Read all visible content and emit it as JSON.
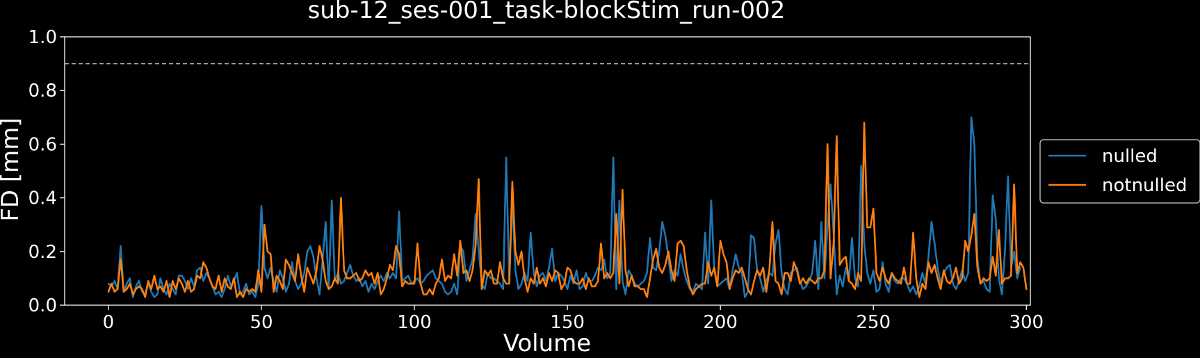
{
  "chart_data": {
    "type": "line",
    "title": "sub-12_ses-001_task-blockStim_run-002",
    "xlabel": "Volume",
    "ylabel": "FD [mm]",
    "xlim": [
      -14.3,
      301.3
    ],
    "ylim": [
      0.0,
      1.0
    ],
    "xticks": [
      0,
      50,
      100,
      150,
      200,
      250,
      300
    ],
    "yticks": [
      0.0,
      0.2,
      0.4,
      0.6,
      0.8,
      1.0
    ],
    "ytick_format": 1,
    "grid": false,
    "legend": "right-outside",
    "background": "#000000",
    "threshold": {
      "value": 0.9,
      "style": "dashed",
      "color": "#b0b0b0"
    },
    "series": [
      {
        "name": "nulled",
        "color": "#1f77b4",
        "values": [
          0.08,
          0.07,
          0.09,
          0.06,
          0.22,
          0.05,
          0.08,
          0.1,
          0.03,
          0.07,
          0.09,
          0.05,
          0.04,
          0.08,
          0.05,
          0.03,
          0.04,
          0.1,
          0.06,
          0.04,
          0.08,
          0.06,
          0.04,
          0.11,
          0.11,
          0.09,
          0.06,
          0.1,
          0.07,
          0.13,
          0.14,
          0.09,
          0.12,
          0.1,
          0.07,
          0.04,
          0.05,
          0.03,
          0.06,
          0.11,
          0.07,
          0.09,
          0.12,
          0.04,
          0.05,
          0.08,
          0.04,
          0.05,
          0.03,
          0.08,
          0.37,
          0.14,
          0.1,
          0.14,
          0.09,
          0.05,
          0.13,
          0.1,
          0.05,
          0.08,
          0.16,
          0.09,
          0.06,
          0.08,
          0.12,
          0.2,
          0.22,
          0.18,
          0.1,
          0.04,
          0.17,
          0.31,
          0.06,
          0.39,
          0.09,
          0.12,
          0.08,
          0.09,
          0.12,
          0.15,
          0.11,
          0.09,
          0.1,
          0.07,
          0.09,
          0.05,
          0.08,
          0.06,
          0.09,
          0.11,
          0.09,
          0.12,
          0.1,
          0.12,
          0.1,
          0.35,
          0.09,
          0.1,
          0.11,
          0.08,
          0.09,
          0.1,
          0.08,
          0.09,
          0.11,
          0.12,
          0.13,
          0.1,
          0.09,
          0.08,
          0.05,
          0.04,
          0.05,
          0.08,
          0.04,
          0.22,
          0.2,
          0.09,
          0.13,
          0.17,
          0.34,
          0.21,
          0.08,
          0.06,
          0.12,
          0.1,
          0.1,
          0.09,
          0.08,
          0.06,
          0.55,
          0.09,
          0.4,
          0.13,
          0.06,
          0.08,
          0.12,
          0.09,
          0.27,
          0.12,
          0.07,
          0.11,
          0.12,
          0.09,
          0.14,
          0.21,
          0.09,
          0.12,
          0.11,
          0.09,
          0.06,
          0.11,
          0.08,
          0.13,
          0.06,
          0.07,
          0.12,
          0.09,
          0.09,
          0.11,
          0.14,
          0.13,
          0.17,
          0.1,
          0.12,
          0.55,
          0.06,
          0.39,
          0.09,
          0.04,
          0.13,
          0.11,
          0.08,
          0.07,
          0.08,
          0.09,
          0.12,
          0.25,
          0.14,
          0.13,
          0.2,
          0.31,
          0.26,
          0.18,
          0.09,
          0.13,
          0.11,
          0.19,
          0.13,
          0.09,
          0.06,
          0.05,
          0.08,
          0.07,
          0.06,
          0.27,
          0.08,
          0.39,
          0.13,
          0.07,
          0.08,
          0.09,
          0.1,
          0.06,
          0.13,
          0.19,
          0.14,
          0.12,
          0.03,
          0.05,
          0.26,
          0.25,
          0.13,
          0.1,
          0.05,
          0.09,
          0.12,
          0.11,
          0.23,
          0.28,
          0.12,
          0.06,
          0.04,
          0.12,
          0.13,
          0.14,
          0.09,
          0.06,
          0.07,
          0.09,
          0.12,
          0.24,
          0.06,
          0.31,
          0.1,
          0.29,
          0.45,
          0.27,
          0.04,
          0.11,
          0.07,
          0.14,
          0.09,
          0.25,
          0.1,
          0.07,
          0.52,
          0.23,
          0.12,
          0.08,
          0.13,
          0.05,
          0.06,
          0.16,
          0.08,
          0.05,
          0.12,
          0.09,
          0.08,
          0.1,
          0.1,
          0.08,
          0.05,
          0.07,
          0.04,
          0.07,
          0.12,
          0.08,
          0.18,
          0.31,
          0.23,
          0.14,
          0.08,
          0.12,
          0.14,
          0.15,
          0.08,
          0.06,
          0.09,
          0.13,
          0.09,
          0.12,
          0.7,
          0.6,
          0.17,
          0.08,
          0.09,
          0.06,
          0.05,
          0.41,
          0.32,
          0.1,
          0.04,
          0.2,
          0.48,
          0.14,
          0.2,
          0.1,
          0.14
        ]
      },
      {
        "name": "notnulled",
        "color": "#ff7f0e",
        "values": [
          0.05,
          0.08,
          0.05,
          0.06,
          0.17,
          0.05,
          0.06,
          0.08,
          0.04,
          0.06,
          0.07,
          0.06,
          0.03,
          0.09,
          0.06,
          0.11,
          0.06,
          0.07,
          0.05,
          0.09,
          0.03,
          0.09,
          0.06,
          0.1,
          0.08,
          0.05,
          0.09,
          0.05,
          0.06,
          0.11,
          0.1,
          0.16,
          0.14,
          0.1,
          0.07,
          0.06,
          0.11,
          0.05,
          0.1,
          0.07,
          0.06,
          0.1,
          0.03,
          0.05,
          0.03,
          0.06,
          0.05,
          0.06,
          0.05,
          0.13,
          0.05,
          0.3,
          0.2,
          0.19,
          0.05,
          0.11,
          0.09,
          0.06,
          0.17,
          0.15,
          0.12,
          0.09,
          0.19,
          0.11,
          0.05,
          0.14,
          0.11,
          0.08,
          0.13,
          0.22,
          0.17,
          0.09,
          0.06,
          0.07,
          0.1,
          0.08,
          0.4,
          0.13,
          0.1,
          0.1,
          0.11,
          0.12,
          0.09,
          0.1,
          0.13,
          0.11,
          0.12,
          0.08,
          0.12,
          0.04,
          0.06,
          0.1,
          0.15,
          0.13,
          0.22,
          0.19,
          0.07,
          0.09,
          0.08,
          0.08,
          0.08,
          0.23,
          0.08,
          0.04,
          0.04,
          0.06,
          0.04,
          0.08,
          0.1,
          0.17,
          0.09,
          0.11,
          0.1,
          0.19,
          0.11,
          0.24,
          0.12,
          0.13,
          0.09,
          0.13,
          0.22,
          0.47,
          0.06,
          0.13,
          0.11,
          0.13,
          0.08,
          0.08,
          0.16,
          0.1,
          0.08,
          0.08,
          0.46,
          0.2,
          0.15,
          0.2,
          0.1,
          0.05,
          0.1,
          0.08,
          0.14,
          0.08,
          0.1,
          0.07,
          0.12,
          0.09,
          0.13,
          0.12,
          0.06,
          0.08,
          0.14,
          0.13,
          0.09,
          0.08,
          0.08,
          0.1,
          0.06,
          0.1,
          0.07,
          0.07,
          0.09,
          0.23,
          0.1,
          0.12,
          0.1,
          0.12,
          0.34,
          0.08,
          0.43,
          0.13,
          0.07,
          0.11,
          0.07,
          0.07,
          0.06,
          0.06,
          0.03,
          0.1,
          0.17,
          0.21,
          0.14,
          0.12,
          0.15,
          0.2,
          0.13,
          0.09,
          0.23,
          0.24,
          0.22,
          0.13,
          0.07,
          0.04,
          0.06,
          0.07,
          0.08,
          0.08,
          0.16,
          0.11,
          0.14,
          0.07,
          0.24,
          0.19,
          0.16,
          0.06,
          0.1,
          0.13,
          0.12,
          0.14,
          0.1,
          0.06,
          0.04,
          0.09,
          0.13,
          0.11,
          0.14,
          0.05,
          0.13,
          0.31,
          0.09,
          0.08,
          0.04,
          0.12,
          0.12,
          0.09,
          0.16,
          0.13,
          0.08,
          0.1,
          0.08,
          0.1,
          0.09,
          0.08,
          0.1,
          0.1,
          0.13,
          0.6,
          0.1,
          0.23,
          0.63,
          0.15,
          0.17,
          0.18,
          0.09,
          0.08,
          0.06,
          0.12,
          0.09,
          0.68,
          0.29,
          0.29,
          0.36,
          0.12,
          0.09,
          0.14,
          0.1,
          0.08,
          0.12,
          0.1,
          0.09,
          0.08,
          0.14,
          0.08,
          0.08,
          0.27,
          0.1,
          0.03,
          0.08,
          0.06,
          0.16,
          0.12,
          0.15,
          0.1,
          0.06,
          0.13,
          0.09,
          0.08,
          0.1,
          0.14,
          0.08,
          0.1,
          0.24,
          0.2,
          0.26,
          0.34,
          0.14,
          0.08,
          0.1,
          0.09,
          0.1,
          0.18,
          0.11,
          0.28,
          0.08,
          0.1,
          0.1,
          0.11,
          0.45,
          0.12,
          0.16,
          0.14,
          0.06
        ]
      }
    ]
  }
}
